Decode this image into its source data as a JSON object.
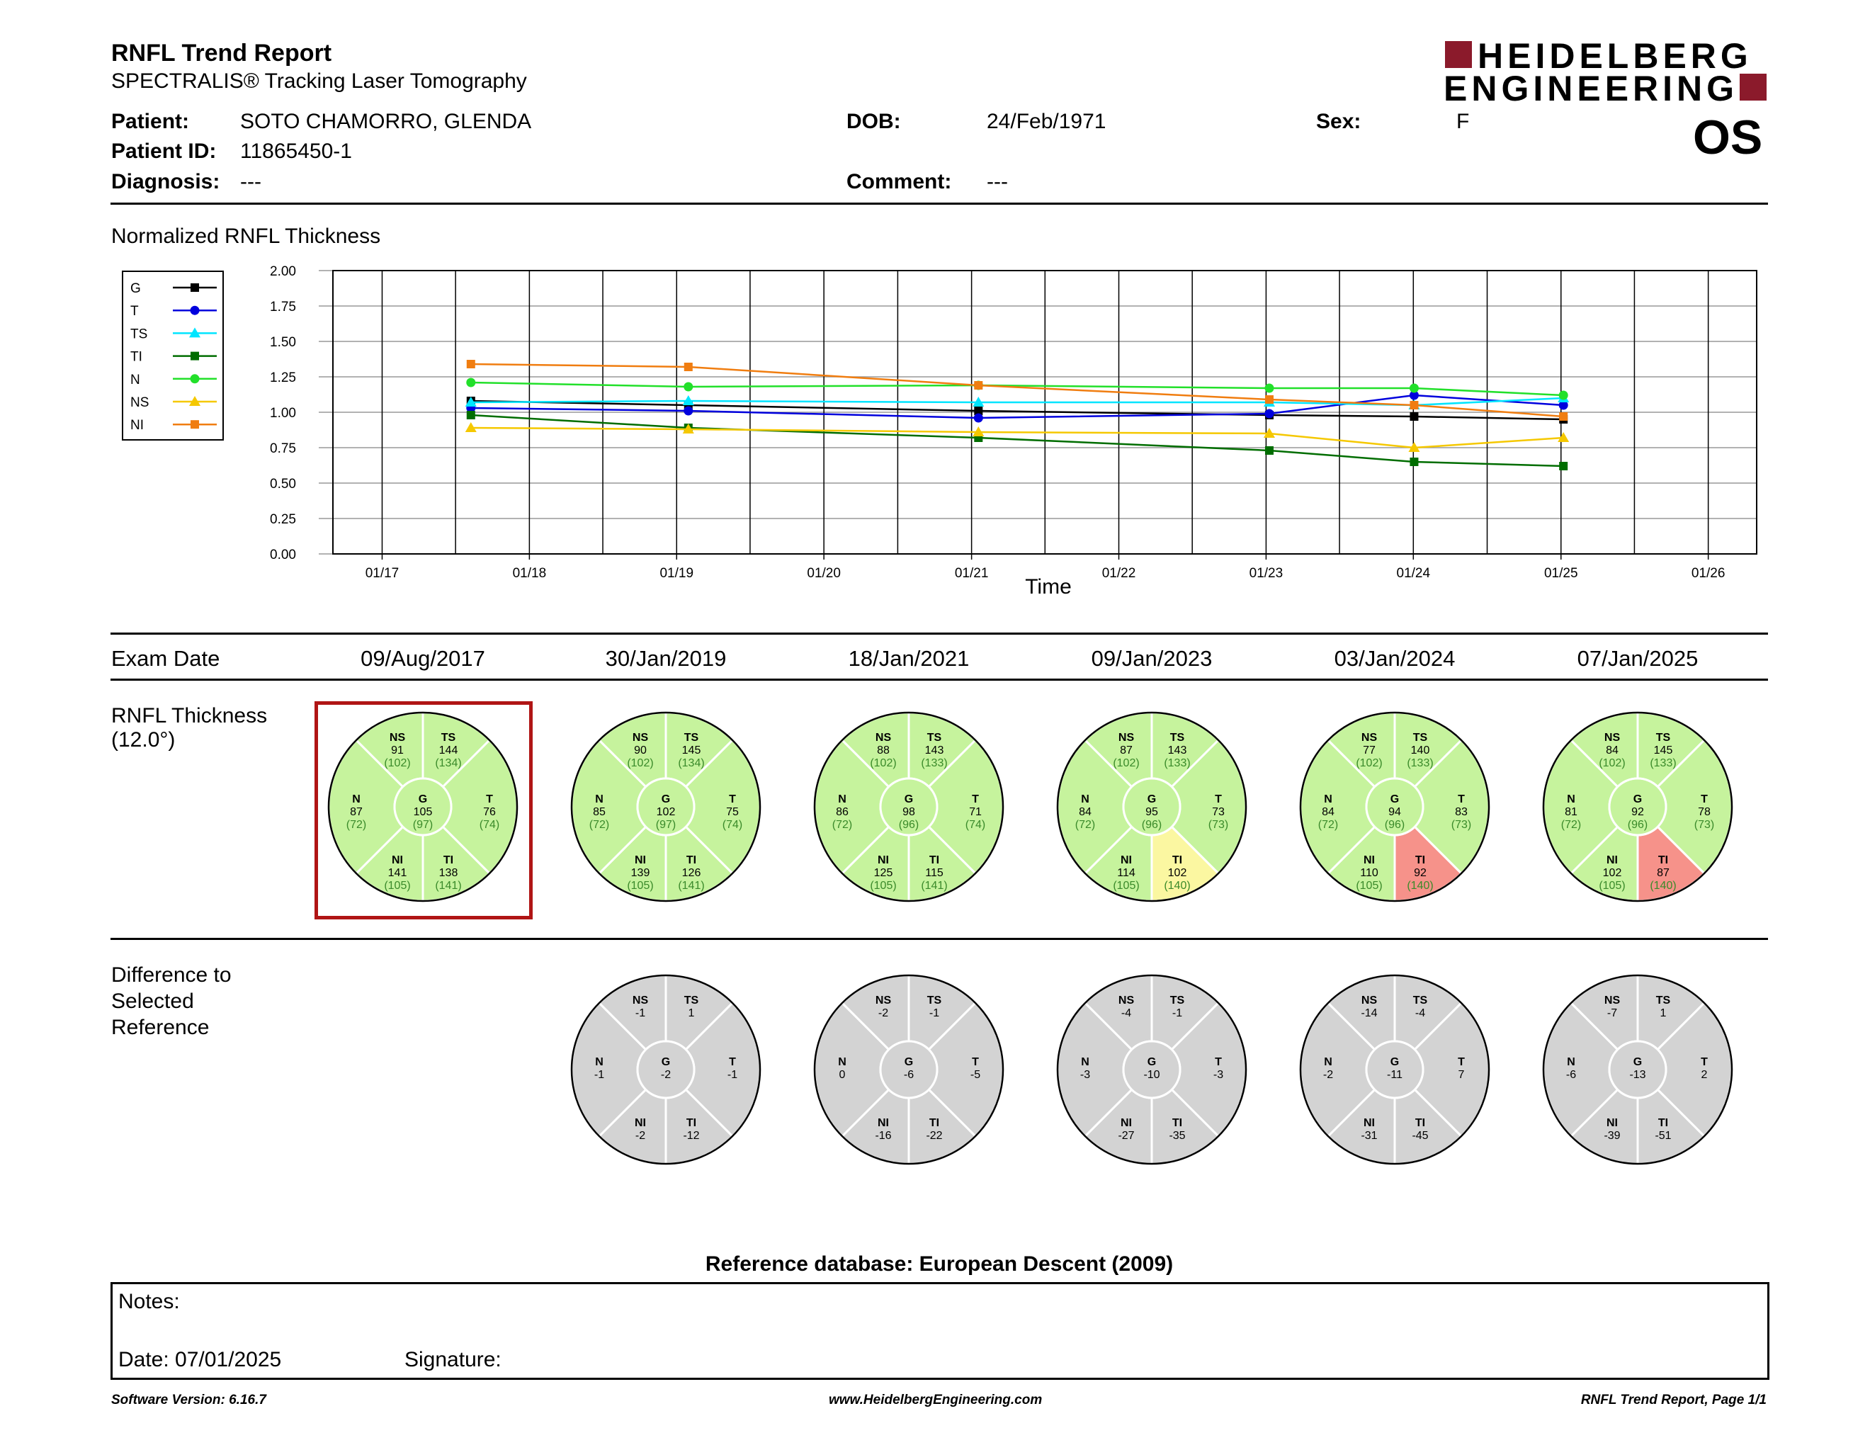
{
  "header": {
    "title": "RNFL Trend Report",
    "subtitle": "SPECTRALIS® Tracking Laser Tomography",
    "logo_line1": "HEIDELBERG",
    "logo_line2": "ENGINEERING",
    "eye": "OS"
  },
  "patient": {
    "patient_label": "Patient:",
    "patient_name": "SOTO CHAMORRO, GLENDA",
    "id_label": "Patient ID:",
    "id_value": "11865450-1",
    "diagnosis_label": "Diagnosis:",
    "diagnosis_value": "---",
    "dob_label": "DOB:",
    "dob_value": "24/Feb/1971",
    "comment_label": "Comment:",
    "comment_value": "---",
    "sex_label": "Sex:",
    "sex_value": "F"
  },
  "chart_data": {
    "type": "line",
    "title": "Normalized RNFL Thickness",
    "xlabel": "Time",
    "ylabel": "",
    "ylim": [
      0,
      2
    ],
    "yticks": [
      "0.00",
      "0.25",
      "0.50",
      "0.75",
      "1.00",
      "1.25",
      "1.50",
      "1.75",
      "2.00"
    ],
    "xlim": [
      "2016-09-01",
      "2026-05-01"
    ],
    "xticks": [
      {
        "label": "01/17",
        "date": "2017-01-01"
      },
      {
        "label": "01/18",
        "date": "2018-01-01"
      },
      {
        "label": "01/19",
        "date": "2019-01-01"
      },
      {
        "label": "01/20",
        "date": "2020-01-01"
      },
      {
        "label": "01/21",
        "date": "2021-01-01"
      },
      {
        "label": "01/22",
        "date": "2022-01-01"
      },
      {
        "label": "01/23",
        "date": "2023-01-01"
      },
      {
        "label": "01/24",
        "date": "2024-01-01"
      },
      {
        "label": "01/25",
        "date": "2025-01-01"
      },
      {
        "label": "01/26",
        "date": "2026-01-01"
      }
    ],
    "x": [
      "2017-08-09",
      "2019-01-30",
      "2021-01-18",
      "2023-01-09",
      "2024-01-03",
      "2025-01-07"
    ],
    "grid": true,
    "legend_position": "left",
    "series": [
      {
        "name": "G",
        "color": "#000000",
        "marker": "square",
        "values": [
          1.08,
          1.05,
          1.01,
          0.98,
          0.97,
          0.95
        ]
      },
      {
        "name": "T",
        "color": "#0000dd",
        "marker": "circle",
        "values": [
          1.03,
          1.01,
          0.96,
          0.99,
          1.12,
          1.05
        ]
      },
      {
        "name": "TS",
        "color": "#00e5ff",
        "marker": "triangle",
        "values": [
          1.07,
          1.08,
          1.07,
          1.07,
          1.05,
          1.1
        ]
      },
      {
        "name": "TI",
        "color": "#006d00",
        "marker": "square",
        "values": [
          0.98,
          0.89,
          0.82,
          0.73,
          0.65,
          0.62
        ]
      },
      {
        "name": "N",
        "color": "#22e02a",
        "marker": "circle",
        "values": [
          1.21,
          1.18,
          1.19,
          1.17,
          1.17,
          1.12
        ]
      },
      {
        "name": "NS",
        "color": "#f5c800",
        "marker": "triangle",
        "values": [
          0.89,
          0.88,
          0.86,
          0.85,
          0.75,
          0.82
        ]
      },
      {
        "name": "NI",
        "color": "#f07d10",
        "marker": "square",
        "values": [
          1.34,
          1.32,
          1.19,
          1.09,
          1.05,
          0.97
        ]
      }
    ]
  },
  "exam_section": {
    "exam_date_label": "Exam Date",
    "thickness_label_1": "RNFL Thickness",
    "thickness_label_2": "(12.0°)",
    "difference_label_1": "Difference to",
    "difference_label_2": "Selected",
    "difference_label_3": "Reference",
    "selected_exam_index": 0,
    "colors": {
      "green": "#c6f39d",
      "yellow": "#fbf7a1",
      "red": "#f6928a",
      "grey": "#d3d3d3",
      "normal_text": "#3a8a2a"
    },
    "exams": [
      {
        "date": "09/Aug/2017",
        "thickness": {
          "NS": [
            "91",
            "(102)"
          ],
          "TS": [
            "144",
            "(134)"
          ],
          "N": [
            "87",
            "(72)"
          ],
          "G": [
            "105",
            "(97)"
          ],
          "T": [
            "76",
            "(74)"
          ],
          "NI": [
            "141",
            "(105)"
          ],
          "TI": [
            "138",
            "(141)"
          ]
        },
        "status": {
          "NS": "green",
          "TS": "green",
          "N": "green",
          "G": "green",
          "T": "green",
          "NI": "green",
          "TI": "green"
        },
        "difference": null
      },
      {
        "date": "30/Jan/2019",
        "thickness": {
          "NS": [
            "90",
            "(102)"
          ],
          "TS": [
            "145",
            "(134)"
          ],
          "N": [
            "85",
            "(72)"
          ],
          "G": [
            "102",
            "(97)"
          ],
          "T": [
            "75",
            "(74)"
          ],
          "NI": [
            "139",
            "(105)"
          ],
          "TI": [
            "126",
            "(141)"
          ]
        },
        "status": {
          "NS": "green",
          "TS": "green",
          "N": "green",
          "G": "green",
          "T": "green",
          "NI": "green",
          "TI": "green"
        },
        "difference": {
          "NS": "-1",
          "TS": "1",
          "N": "-1",
          "G": "-2",
          "T": "-1",
          "NI": "-2",
          "TI": "-12"
        }
      },
      {
        "date": "18/Jan/2021",
        "thickness": {
          "NS": [
            "88",
            "(102)"
          ],
          "TS": [
            "143",
            "(133)"
          ],
          "N": [
            "86",
            "(72)"
          ],
          "G": [
            "98",
            "(96)"
          ],
          "T": [
            "71",
            "(74)"
          ],
          "NI": [
            "125",
            "(105)"
          ],
          "TI": [
            "115",
            "(141)"
          ]
        },
        "status": {
          "NS": "green",
          "TS": "green",
          "N": "green",
          "G": "green",
          "T": "green",
          "NI": "green",
          "TI": "green"
        },
        "difference": {
          "NS": "-2",
          "TS": "-1",
          "N": "0",
          "G": "-6",
          "T": "-5",
          "NI": "-16",
          "TI": "-22"
        }
      },
      {
        "date": "09/Jan/2023",
        "thickness": {
          "NS": [
            "87",
            "(102)"
          ],
          "TS": [
            "143",
            "(133)"
          ],
          "N": [
            "84",
            "(72)"
          ],
          "G": [
            "95",
            "(96)"
          ],
          "T": [
            "73",
            "(73)"
          ],
          "NI": [
            "114",
            "(105)"
          ],
          "TI": [
            "102",
            "(140)"
          ]
        },
        "status": {
          "NS": "green",
          "TS": "green",
          "N": "green",
          "G": "green",
          "T": "green",
          "NI": "green",
          "TI": "yellow"
        },
        "difference": {
          "NS": "-4",
          "TS": "-1",
          "N": "-3",
          "G": "-10",
          "T": "-3",
          "NI": "-27",
          "TI": "-35"
        }
      },
      {
        "date": "03/Jan/2024",
        "thickness": {
          "NS": [
            "77",
            "(102)"
          ],
          "TS": [
            "140",
            "(133)"
          ],
          "N": [
            "84",
            "(72)"
          ],
          "G": [
            "94",
            "(96)"
          ],
          "T": [
            "83",
            "(73)"
          ],
          "NI": [
            "110",
            "(105)"
          ],
          "TI": [
            "92",
            "(140)"
          ]
        },
        "status": {
          "NS": "green",
          "TS": "green",
          "N": "green",
          "G": "green",
          "T": "green",
          "NI": "green",
          "TI": "red"
        },
        "difference": {
          "NS": "-14",
          "TS": "-4",
          "N": "-2",
          "G": "-11",
          "T": "7",
          "NI": "-31",
          "TI": "-45"
        }
      },
      {
        "date": "07/Jan/2025",
        "thickness": {
          "NS": [
            "84",
            "(102)"
          ],
          "TS": [
            "145",
            "(133)"
          ],
          "N": [
            "81",
            "(72)"
          ],
          "G": [
            "92",
            "(96)"
          ],
          "T": [
            "78",
            "(73)"
          ],
          "NI": [
            "102",
            "(105)"
          ],
          "TI": [
            "87",
            "(140)"
          ]
        },
        "status": {
          "NS": "green",
          "TS": "green",
          "N": "green",
          "G": "green",
          "T": "green",
          "NI": "green",
          "TI": "red"
        },
        "difference": {
          "NS": "-7",
          "TS": "1",
          "N": "-6",
          "G": "-13",
          "T": "2",
          "NI": "-39",
          "TI": "-51"
        }
      }
    ]
  },
  "reference": {
    "text": "Reference database: European Descent (2009)"
  },
  "notes": {
    "notes_label": "Notes:",
    "date_label": "Date: 07/01/2025",
    "signature_label": "Signature:"
  },
  "footer": {
    "software": "Software Version: 6.16.7",
    "website": "www.HeidelbergEngineering.com",
    "page": "RNFL Trend Report, Page 1/1"
  }
}
